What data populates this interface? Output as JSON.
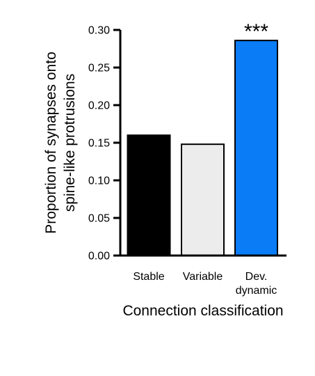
{
  "chart_data": {
    "type": "bar",
    "categories": [
      {
        "lines": [
          "Stable"
        ]
      },
      {
        "lines": [
          "Variable"
        ]
      },
      {
        "lines": [
          "Dev.",
          "dynamic"
        ]
      }
    ],
    "values": [
      0.16,
      0.148,
      0.286
    ],
    "bar_colors": [
      "#000000",
      "#ececec",
      "#0a7cf5"
    ],
    "annotations": [
      "",
      "",
      "***"
    ],
    "ylabel_lines": [
      "Proportion of synapses onto",
      "spine-like protrusions"
    ],
    "xlabel": "Connection classification",
    "ylim": [
      0,
      0.3
    ],
    "yticks": [
      "0.00",
      "0.05",
      "0.10",
      "0.15",
      "0.20",
      "0.25",
      "0.30"
    ],
    "grid": false
  }
}
